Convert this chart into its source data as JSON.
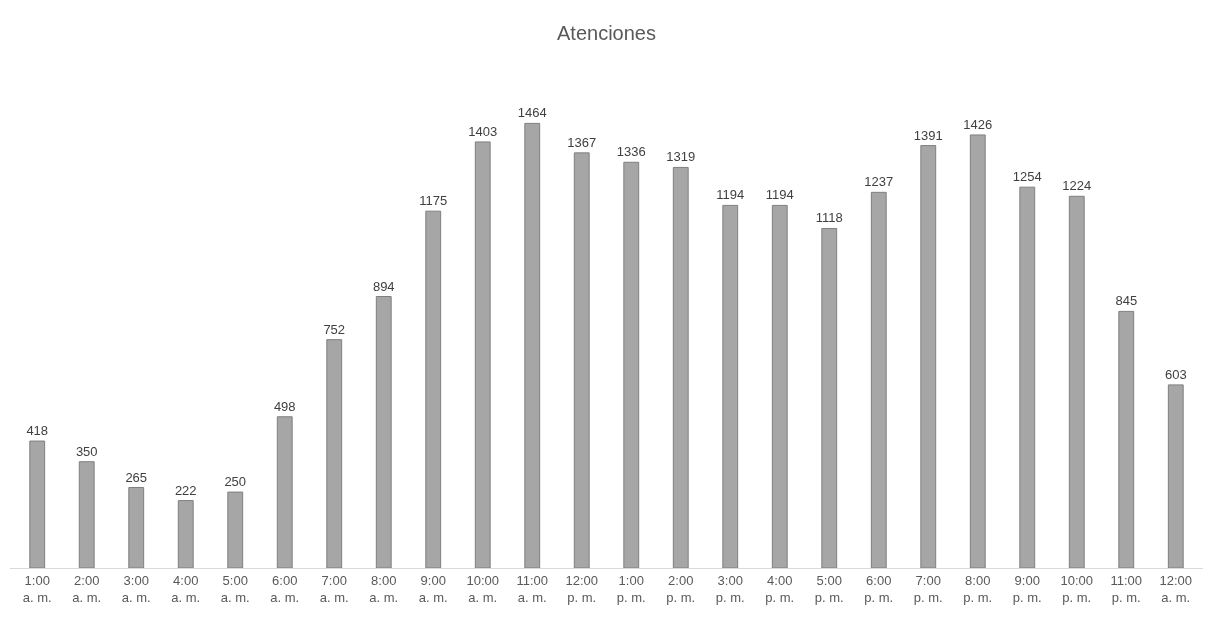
{
  "chart_data": {
    "type": "bar",
    "title": "Atenciones",
    "categories": [
      "1:00\na. m.",
      "2:00\na. m.",
      "3:00\na. m.",
      "4:00\na. m.",
      "5:00\na. m.",
      "6:00\na. m.",
      "7:00\na. m.",
      "8:00\na. m.",
      "9:00\na. m.",
      "10:00\na. m.",
      "11:00\na. m.",
      "12:00\np. m.",
      "1:00\np. m.",
      "2:00\np. m.",
      "3:00\np. m.",
      "4:00\np. m.",
      "5:00\np. m.",
      "6:00\np. m.",
      "7:00\np. m.",
      "8:00\np. m.",
      "9:00\np. m.",
      "10:00\np. m.",
      "11:00\np. m.",
      "12:00\na. m."
    ],
    "values": [
      418,
      350,
      265,
      222,
      250,
      498,
      752,
      894,
      1175,
      1403,
      1464,
      1367,
      1336,
      1319,
      1194,
      1194,
      1118,
      1237,
      1391,
      1426,
      1254,
      1224,
      845,
      603
    ],
    "color": "#a6a6a6",
    "data_labels": true
  }
}
